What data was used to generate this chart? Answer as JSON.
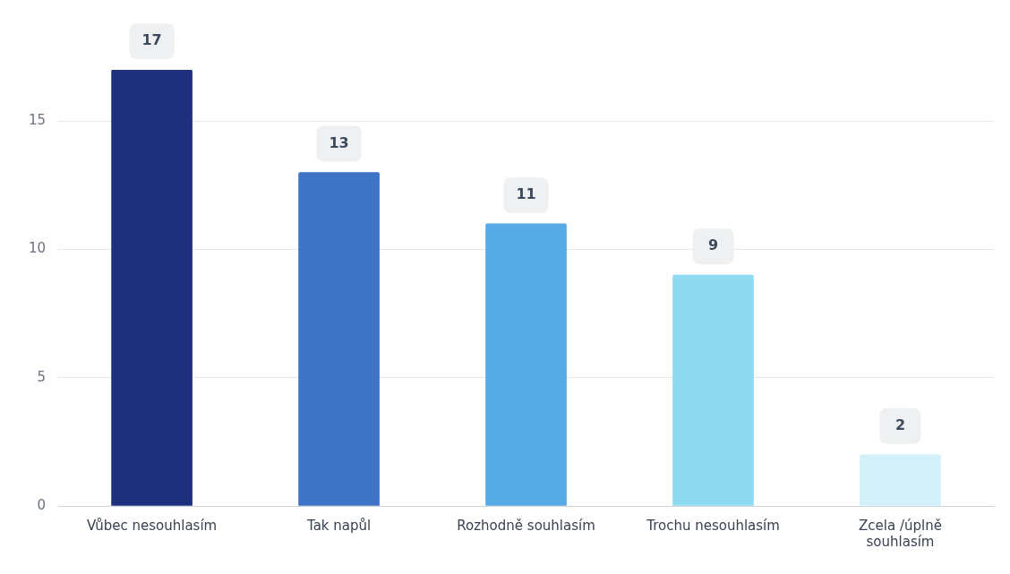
{
  "chart_data": {
    "type": "bar",
    "categories": [
      "Vůbec nesouhlasím",
      "Tak napůl",
      "Rozhodně souhlasím",
      "Trochu nesouhlasím",
      "Zcela /úplně souhlasím"
    ],
    "values": [
      17,
      13,
      11,
      9,
      2
    ],
    "colors": [
      "#1e2f7e",
      "#3f73c5",
      "#56abe6",
      "#8fd9f1",
      "#d3f1f9"
    ],
    "ylim": [
      0,
      17
    ],
    "yticks": [
      0,
      5,
      10,
      15
    ],
    "grid": "y",
    "legend": false,
    "data_labels": true
  }
}
